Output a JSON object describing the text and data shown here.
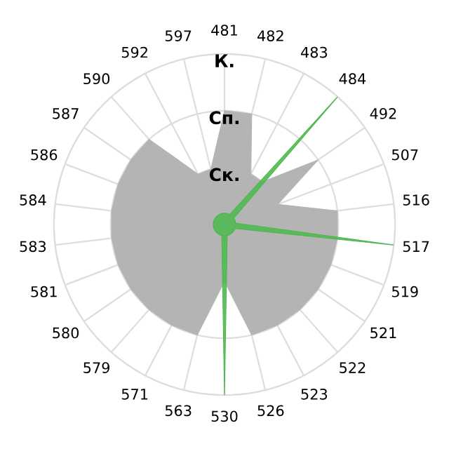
{
  "chart_data": {
    "type": "radar",
    "categories": [
      "481",
      "482",
      "483",
      "484",
      "492",
      "507",
      "516",
      "517",
      "519",
      "521",
      "522",
      "523",
      "526",
      "530",
      "563",
      "571",
      "579",
      "580",
      "581",
      "583",
      "584",
      "586",
      "587",
      "590",
      "592",
      "597"
    ],
    "series": [
      {
        "type": "bar",
        "color": "#b4b4b4",
        "values": [
          2,
          2,
          1,
          1,
          2,
          1,
          2,
          2,
          2,
          2,
          2,
          2,
          2,
          1,
          2,
          2,
          2,
          2,
          2,
          2,
          2,
          2,
          2,
          2,
          1,
          1
        ]
      },
      {
        "type": "bar",
        "color": "#4cb84c",
        "values": [
          0.2,
          0.2,
          0.2,
          3,
          0.2,
          0.2,
          0.2,
          3,
          0.2,
          0.2,
          0.2,
          0.2,
          0.2,
          3,
          0.2,
          0.2,
          0.2,
          0.2,
          0.2,
          0.2,
          0.2,
          0.2,
          0.2,
          0.2,
          0.2,
          0.2
        ]
      }
    ],
    "ylim": [
      0,
      3
    ],
    "yticks": [
      {
        "value": 1,
        "label": "Ск."
      },
      {
        "value": 2,
        "label": "Сп."
      },
      {
        "value": 3,
        "label": "К."
      }
    ],
    "grid": true
  }
}
